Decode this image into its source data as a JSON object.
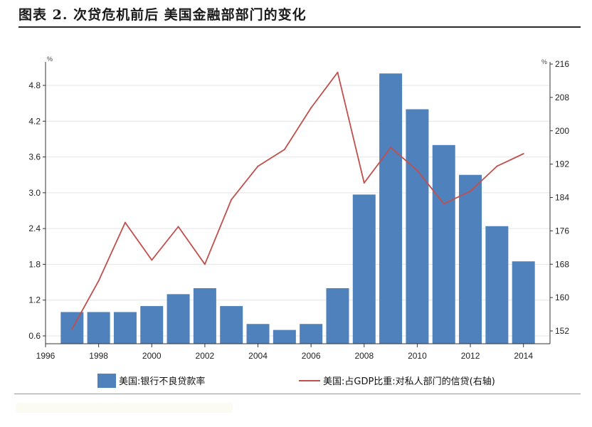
{
  "figure": {
    "title": "图表 2.   次贷危机前后 美国金融部部门的变化"
  },
  "chart_data": {
    "type": "bar+line",
    "x_ticks": [
      "1996",
      "1998",
      "2000",
      "2002",
      "2004",
      "2006",
      "2008",
      "2010",
      "2012",
      "2014"
    ],
    "xlim": [
      1996,
      2015
    ],
    "left_axis": {
      "unit": "%",
      "ylim": [
        0.6,
        5.0
      ],
      "ticks": [
        "0.6",
        "1.2",
        "1.8",
        "2.4",
        "3.0",
        "3.6",
        "4.2",
        "4.8"
      ]
    },
    "right_axis": {
      "unit": "%",
      "ylim": [
        148,
        216
      ],
      "ticks": [
        "152",
        "160",
        "168",
        "176",
        "184",
        "192",
        "200",
        "208",
        "216"
      ]
    },
    "grid": true,
    "legend_position": "bottom",
    "series": [
      {
        "name": "美国:银行不良贷款率",
        "kind": "bar",
        "axis": "left",
        "color": "#4f81bd",
        "x": [
          1997,
          1998,
          1999,
          2000,
          2001,
          2002,
          2003,
          2004,
          2005,
          2006,
          2007,
          2008,
          2009,
          2010,
          2011,
          2012,
          2013,
          2014
        ],
        "values": [
          1.0,
          1.0,
          1.0,
          1.1,
          1.3,
          1.4,
          1.1,
          0.8,
          0.7,
          0.8,
          1.4,
          2.97,
          5.0,
          4.4,
          3.8,
          3.3,
          2.44,
          1.85
        ]
      },
      {
        "name": "美国:占GDP比重:对私人部门的信贷(右轴)",
        "kind": "line",
        "axis": "right",
        "color": "#c0504d",
        "x": [
          1997,
          1998,
          1999,
          2000,
          2001,
          2002,
          2003,
          2004,
          2005,
          2006,
          2007,
          2008,
          2009,
          2010,
          2011,
          2012,
          2013,
          2014
        ],
        "values": [
          152.5,
          164,
          178,
          169,
          177,
          168,
          183.5,
          191.5,
          195.5,
          205.5,
          214,
          187.5,
          196,
          190.5,
          182.5,
          185.5,
          191.5,
          194.5
        ]
      }
    ]
  }
}
